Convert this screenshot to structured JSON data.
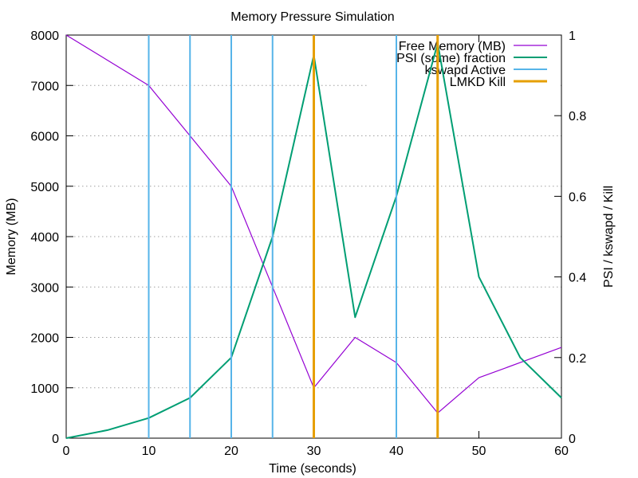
{
  "chart_data": {
    "type": "line",
    "title": "Memory Pressure Simulation",
    "xlabel": "Time (seconds)",
    "ylabel": "Memory (MB)",
    "y2label": "PSI / kswapd / Kill",
    "xlim": [
      0,
      60
    ],
    "ylim": [
      0,
      8000
    ],
    "y2lim": [
      0,
      1
    ],
    "xticks": [
      0,
      10,
      20,
      30,
      40,
      50,
      60
    ],
    "yticks": [
      0,
      1000,
      2000,
      3000,
      4000,
      5000,
      6000,
      7000,
      8000
    ],
    "y2ticks": [
      0,
      0.2,
      0.4,
      0.6,
      0.8,
      1
    ],
    "grid": {
      "x": false,
      "y": true
    },
    "legend": "top-right",
    "series": [
      {
        "name": "Free Memory (MB)",
        "type": "line",
        "axis": "y",
        "color": "#9400d3",
        "x": [
          0,
          5,
          10,
          15,
          20,
          25,
          30,
          35,
          40,
          45,
          50,
          55,
          60
        ],
        "y": [
          8000,
          7500,
          7000,
          6000,
          5000,
          3000,
          1000,
          2000,
          1500,
          500,
          1200,
          1500,
          1800
        ]
      },
      {
        "name": "PSI (some) fraction",
        "type": "line",
        "axis": "y2",
        "color": "#009e73",
        "x": [
          0,
          5,
          10,
          15,
          20,
          25,
          30,
          35,
          40,
          45,
          50,
          55,
          60
        ],
        "y": [
          0,
          0.02,
          0.05,
          0.1,
          0.2,
          0.5,
          0.95,
          0.3,
          0.6,
          0.98,
          0.4,
          0.2,
          0.1
        ]
      },
      {
        "name": "kswapd Active",
        "type": "impulse",
        "axis": "y2",
        "color": "#56b4e9",
        "x": [
          10,
          15,
          20,
          25,
          40
        ],
        "y": [
          1,
          1,
          1,
          1,
          1
        ]
      },
      {
        "name": "LMKD Kill",
        "type": "impulse",
        "axis": "y2",
        "color": "#e69f00",
        "x": [
          30,
          45
        ],
        "y": [
          1,
          1
        ]
      }
    ]
  }
}
